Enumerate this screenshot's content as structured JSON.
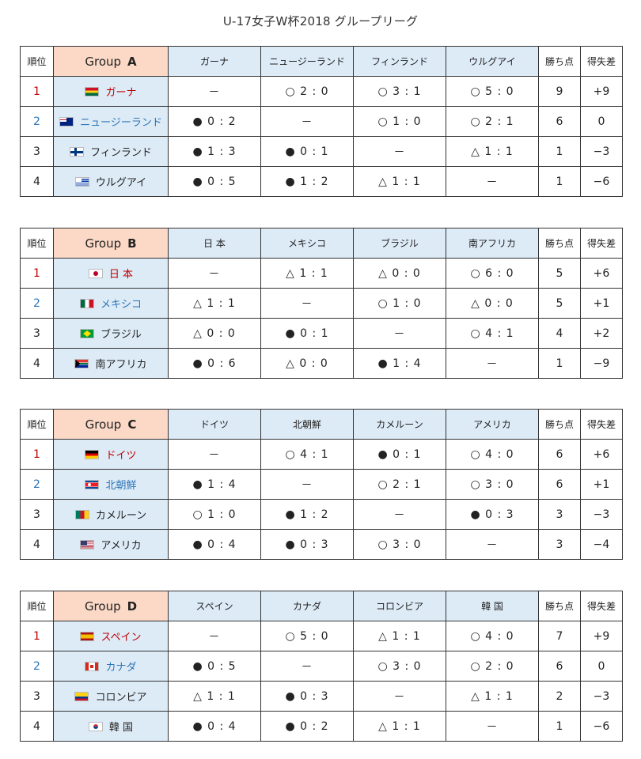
{
  "title": "U-17女子W杯2018 グループリーグ",
  "headers": {
    "rank": "順位",
    "group_word": "Group",
    "points": "勝ち点",
    "goal_diff": "得失差"
  },
  "groups": [
    {
      "letter": "A",
      "opponents": [
        "ガーナ",
        "ニュージーランド",
        "フィンランド",
        "ウルグアイ"
      ],
      "rows": [
        {
          "rank": "1",
          "team": "ガーナ",
          "flag": "ghana-flag-icon",
          "color": "#c00000",
          "results": [
            "－",
            "○ 2 : 0",
            "○ 3 : 1",
            "○ 5 : 0"
          ],
          "points": "9",
          "gd": "+9"
        },
        {
          "rank": "2",
          "team": "ニュージーランド",
          "flag": "new-zealand-flag-icon",
          "color": "#2e75b6",
          "results": [
            "● 0 : 2",
            "－",
            "○ 1 : 0",
            "○ 2 : 1"
          ],
          "points": "6",
          "gd": "0"
        },
        {
          "rank": "3",
          "team": "フィンランド",
          "flag": "finland-flag-icon",
          "color": "#222222",
          "results": [
            "● 1 : 3",
            "● 0 : 1",
            "－",
            "△ 1 : 1"
          ],
          "points": "1",
          "gd": "−3"
        },
        {
          "rank": "4",
          "team": "ウルグアイ",
          "flag": "uruguay-flag-icon",
          "color": "#222222",
          "results": [
            "● 0 : 5",
            "● 1 : 2",
            "△ 1 : 1",
            "－"
          ],
          "points": "1",
          "gd": "−6"
        }
      ]
    },
    {
      "letter": "B",
      "opponents": [
        "日 本",
        "メキシコ",
        "ブラジル",
        "南アフリカ"
      ],
      "rows": [
        {
          "rank": "1",
          "team": "日 本",
          "flag": "japan-flag-icon",
          "color": "#c00000",
          "results": [
            "－",
            "△ 1 : 1",
            "△ 0 : 0",
            "○ 6 : 0"
          ],
          "points": "5",
          "gd": "+6"
        },
        {
          "rank": "2",
          "team": "メキシコ",
          "flag": "mexico-flag-icon",
          "color": "#2e75b6",
          "results": [
            "△ 1 : 1",
            "－",
            "○ 1 : 0",
            "△ 0 : 0"
          ],
          "points": "5",
          "gd": "+1"
        },
        {
          "rank": "3",
          "team": "ブラジル",
          "flag": "brazil-flag-icon",
          "color": "#222222",
          "results": [
            "△ 0 : 0",
            "● 0 : 1",
            "－",
            "○ 4 : 1"
          ],
          "points": "4",
          "gd": "+2"
        },
        {
          "rank": "4",
          "team": "南アフリカ",
          "flag": "south-africa-flag-icon",
          "color": "#222222",
          "results": [
            "● 0 : 6",
            "△ 0 : 0",
            "● 1 : 4",
            "－"
          ],
          "points": "1",
          "gd": "−9"
        }
      ]
    },
    {
      "letter": "C",
      "opponents": [
        "ドイツ",
        "北朝鮮",
        "カメルーン",
        "アメリカ"
      ],
      "rows": [
        {
          "rank": "1",
          "team": "ドイツ",
          "flag": "germany-flag-icon",
          "color": "#c00000",
          "results": [
            "－",
            "○ 4 : 1",
            "● 0 : 1",
            "○ 4 : 0"
          ],
          "points": "6",
          "gd": "+6"
        },
        {
          "rank": "2",
          "team": "北朝鮮",
          "flag": "north-korea-flag-icon",
          "color": "#2e75b6",
          "results": [
            "● 1 : 4",
            "－",
            "○ 2 : 1",
            "○ 3 : 0"
          ],
          "points": "6",
          "gd": "+1"
        },
        {
          "rank": "3",
          "team": "カメルーン",
          "flag": "cameroon-flag-icon",
          "color": "#222222",
          "results": [
            "○ 1 : 0",
            "● 1 : 2",
            "－",
            "● 0 : 3"
          ],
          "points": "3",
          "gd": "−3"
        },
        {
          "rank": "4",
          "team": "アメリカ",
          "flag": "usa-flag-icon",
          "color": "#222222",
          "results": [
            "● 0 : 4",
            "● 0 : 3",
            "○ 3 : 0",
            "－"
          ],
          "points": "3",
          "gd": "−4"
        }
      ]
    },
    {
      "letter": "D",
      "opponents": [
        "スペイン",
        "カナダ",
        "コロンビア",
        "韓 国"
      ],
      "rows": [
        {
          "rank": "1",
          "team": "スペイン",
          "flag": "spain-flag-icon",
          "color": "#c00000",
          "results": [
            "－",
            "○ 5 : 0",
            "△ 1 : 1",
            "○ 4 : 0"
          ],
          "points": "7",
          "gd": "+9"
        },
        {
          "rank": "2",
          "team": "カナダ",
          "flag": "canada-flag-icon",
          "color": "#2e75b6",
          "results": [
            "● 0 : 5",
            "－",
            "○ 3 : 0",
            "○ 2 : 0"
          ],
          "points": "6",
          "gd": "0"
        },
        {
          "rank": "3",
          "team": "コロンビア",
          "flag": "colombia-flag-icon",
          "color": "#222222",
          "results": [
            "△ 1 : 1",
            "● 0 : 3",
            "－",
            "△ 1 : 1"
          ],
          "points": "2",
          "gd": "−3"
        },
        {
          "rank": "4",
          "team": "韓 国",
          "flag": "south-korea-flag-icon",
          "color": "#222222",
          "results": [
            "● 0 : 4",
            "● 0 : 2",
            "△ 1 : 1",
            "－"
          ],
          "points": "1",
          "gd": "−6"
        }
      ]
    }
  ]
}
